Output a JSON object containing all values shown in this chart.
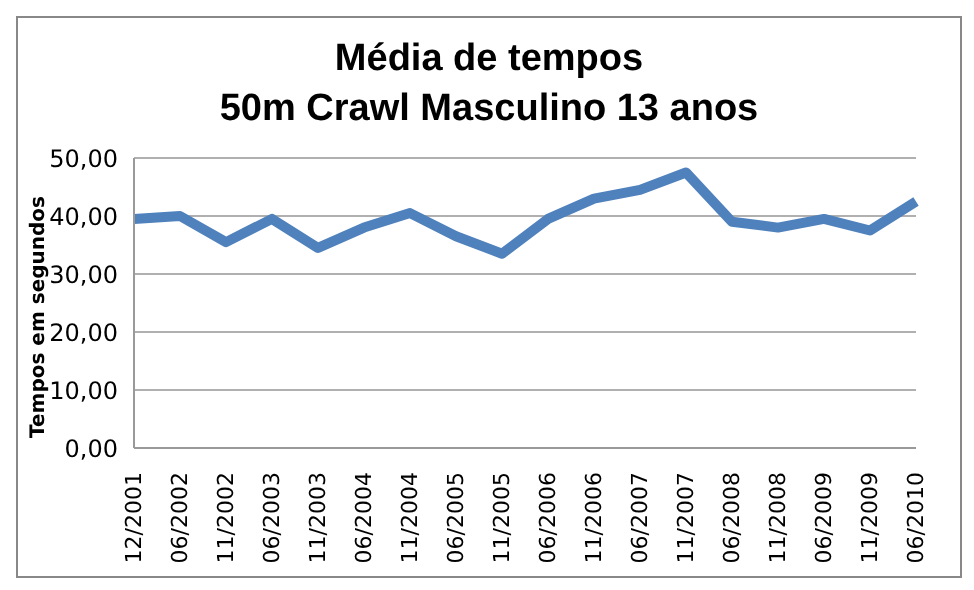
{
  "chart_data": {
    "type": "line",
    "title": "Média de tempos\n50m Crawl Masculino 13 anos",
    "ylabel": "Tempos em segundos",
    "categories": [
      "12/2001",
      "06/2002",
      "11/2002",
      "06/2003",
      "11/2003",
      "06/2004",
      "11/2004",
      "06/2005",
      "11/2005",
      "06/2006",
      "11/2006",
      "06/2007",
      "11/2007",
      "06/2008",
      "11/2008",
      "06/2009",
      "11/2009",
      "06/2010"
    ],
    "series": [
      {
        "color": "#4f81bd",
        "values": [
          39.5,
          40,
          35.5,
          39.5,
          34.5,
          38,
          40.5,
          36.5,
          33.5,
          39.5,
          43,
          44.5,
          47.5,
          39,
          38,
          39.5,
          37.5,
          42.5
        ]
      }
    ],
    "ylim": [
      0,
      50
    ],
    "yticks": [
      {
        "value": 0,
        "label": "0,00"
      },
      {
        "value": 10,
        "label": "10,00"
      },
      {
        "value": 20,
        "label": "20,00"
      },
      {
        "value": 30,
        "label": "30,00"
      },
      {
        "value": 40,
        "label": "40,00"
      },
      {
        "value": 50,
        "label": "50,00"
      }
    ],
    "grid": "y",
    "legend": false,
    "marker": "none",
    "line_style": "solid"
  }
}
